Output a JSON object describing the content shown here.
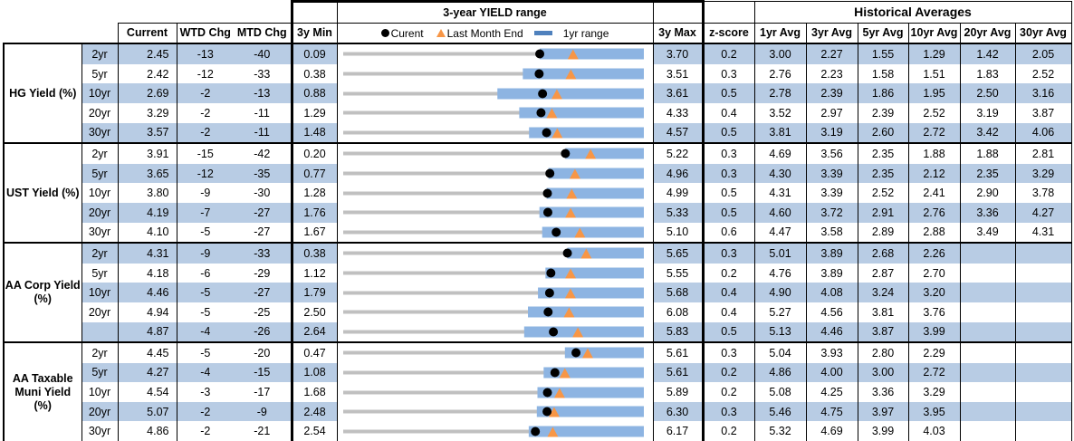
{
  "headers": {
    "range_title": "3-year YIELD range",
    "hist_title": "Historical Averages",
    "current": "Current",
    "wtd": "WTD Chg",
    "mtd": "MTD Chg",
    "min3y": "3y Min",
    "max3y": "3y Max",
    "zscore": "z-score",
    "avg": [
      "1yr Avg",
      "3yr Avg",
      "5yr Avg",
      "10yr Avg",
      "20yr Avg",
      "30yr Avg"
    ],
    "legend": {
      "current": "Curent",
      "last_month_end": "Last Month End",
      "range_1yr": "1yr range"
    }
  },
  "colors": {
    "row_shade": "#b8cce4",
    "current_marker": "#000000",
    "last_month_marker": "#f79646",
    "range_1yr": "#8db4e2",
    "range_3y": "#c0c0c0",
    "legend_bar": "#4f81bd"
  },
  "groups": [
    {
      "label": "HG Yield (%)",
      "rows": [
        {
          "tenor": "2yr",
          "current": "2.45",
          "wtd": "-13",
          "mtd": "-40",
          "min": "0.09",
          "max": "3.70",
          "z": "0.2",
          "avg": [
            "3.00",
            "2.27",
            "1.55",
            "1.29",
            "1.42",
            "2.05"
          ],
          "last_month_end": 2.85,
          "range_1yr": [
            2.45,
            3.7
          ]
        },
        {
          "tenor": "5yr",
          "current": "2.42",
          "wtd": "-12",
          "mtd": "-33",
          "min": "0.38",
          "max": "3.51",
          "z": "0.3",
          "avg": [
            "2.76",
            "2.23",
            "1.58",
            "1.51",
            "1.83",
            "2.52"
          ],
          "last_month_end": 2.75,
          "range_1yr": [
            2.25,
            3.51
          ]
        },
        {
          "tenor": "10yr",
          "current": "2.69",
          "wtd": "-2",
          "mtd": "-13",
          "min": "0.88",
          "max": "3.61",
          "z": "0.5",
          "avg": [
            "2.78",
            "2.39",
            "1.86",
            "1.95",
            "2.50",
            "3.16"
          ],
          "last_month_end": 2.82,
          "range_1yr": [
            2.28,
            3.61
          ]
        },
        {
          "tenor": "20yr",
          "current": "3.29",
          "wtd": "-2",
          "mtd": "-11",
          "min": "1.29",
          "max": "4.33",
          "z": "0.4",
          "avg": [
            "3.52",
            "2.97",
            "2.39",
            "2.52",
            "3.19",
            "3.87"
          ],
          "last_month_end": 3.4,
          "range_1yr": [
            3.07,
            4.33
          ]
        },
        {
          "tenor": "30yr",
          "current": "3.57",
          "wtd": "-2",
          "mtd": "-11",
          "min": "1.48",
          "max": "4.57",
          "z": "0.5",
          "avg": [
            "3.81",
            "3.19",
            "2.60",
            "2.72",
            "3.42",
            "4.06"
          ],
          "last_month_end": 3.68,
          "range_1yr": [
            3.39,
            4.57
          ]
        }
      ]
    },
    {
      "label": "UST Yield (%)",
      "rows": [
        {
          "tenor": "2yr",
          "current": "3.91",
          "wtd": "-15",
          "mtd": "-42",
          "min": "0.20",
          "max": "5.22",
          "z": "0.3",
          "avg": [
            "4.69",
            "3.56",
            "2.35",
            "1.88",
            "1.88",
            "2.81"
          ],
          "last_month_end": 4.33,
          "range_1yr": [
            3.91,
            5.22
          ]
        },
        {
          "tenor": "5yr",
          "current": "3.65",
          "wtd": "-12",
          "mtd": "-35",
          "min": "0.77",
          "max": "4.96",
          "z": "0.3",
          "avg": [
            "4.30",
            "3.39",
            "2.35",
            "2.12",
            "2.35",
            "3.29"
          ],
          "last_month_end": 4.0,
          "range_1yr": [
            3.63,
            4.96
          ]
        },
        {
          "tenor": "10yr",
          "current": "3.80",
          "wtd": "-9",
          "mtd": "-30",
          "min": "1.28",
          "max": "4.99",
          "z": "0.5",
          "avg": [
            "4.31",
            "3.39",
            "2.52",
            "2.41",
            "2.90",
            "3.78"
          ],
          "last_month_end": 4.1,
          "range_1yr": [
            3.79,
            4.99
          ]
        },
        {
          "tenor": "20yr",
          "current": "4.19",
          "wtd": "-7",
          "mtd": "-27",
          "min": "1.76",
          "max": "5.33",
          "z": "0.5",
          "avg": [
            "4.60",
            "3.72",
            "2.91",
            "2.76",
            "3.36",
            "4.27"
          ],
          "last_month_end": 4.46,
          "range_1yr": [
            4.09,
            5.33
          ]
        },
        {
          "tenor": "30yr",
          "current": "4.10",
          "wtd": "-5",
          "mtd": "-27",
          "min": "1.67",
          "max": "5.10",
          "z": "0.6",
          "avg": [
            "4.47",
            "3.58",
            "2.89",
            "2.88",
            "3.49",
            "4.31"
          ],
          "last_month_end": 4.37,
          "range_1yr": [
            3.94,
            5.1
          ]
        }
      ]
    },
    {
      "label": "AA Corp Yield (%)",
      "rows": [
        {
          "tenor": "2yr",
          "current": "4.31",
          "wtd": "-9",
          "mtd": "-33",
          "min": "0.38",
          "max": "5.65",
          "z": "0.3",
          "avg": [
            "5.01",
            "3.89",
            "2.68",
            "2.26",
            "",
            ""
          ],
          "last_month_end": 4.64,
          "range_1yr": [
            4.31,
            5.65
          ]
        },
        {
          "tenor": "5yr",
          "current": "4.18",
          "wtd": "-6",
          "mtd": "-29",
          "min": "1.12",
          "max": "5.55",
          "z": "0.2",
          "avg": [
            "4.76",
            "3.89",
            "2.87",
            "2.70",
            "",
            ""
          ],
          "last_month_end": 4.47,
          "range_1yr": [
            4.1,
            5.55
          ]
        },
        {
          "tenor": "10yr",
          "current": "4.46",
          "wtd": "-5",
          "mtd": "-27",
          "min": "1.79",
          "max": "5.68",
          "z": "0.4",
          "avg": [
            "4.90",
            "4.08",
            "3.24",
            "3.20",
            "",
            ""
          ],
          "last_month_end": 4.73,
          "range_1yr": [
            4.31,
            5.68
          ]
        },
        {
          "tenor": "20yr",
          "current": "4.94",
          "wtd": "-5",
          "mtd": "-25",
          "min": "2.50",
          "max": "6.08",
          "z": "0.4",
          "avg": [
            "5.27",
            "4.56",
            "3.81",
            "3.76",
            "",
            ""
          ],
          "last_month_end": 5.19,
          "range_1yr": [
            4.7,
            6.08
          ]
        },
        {
          "tenor": "",
          "current": "4.87",
          "wtd": "-4",
          "mtd": "-26",
          "min": "2.64",
          "max": "5.83",
          "z": "0.5",
          "avg": [
            "5.13",
            "4.46",
            "3.87",
            "3.99",
            "",
            ""
          ],
          "last_month_end": 5.13,
          "range_1yr": [
            4.56,
            5.83
          ]
        }
      ]
    },
    {
      "label": "AA Taxable Muni Yield (%)",
      "rows": [
        {
          "tenor": "2yr",
          "current": "4.45",
          "wtd": "-5",
          "mtd": "-20",
          "min": "0.47",
          "max": "5.61",
          "z": "0.3",
          "avg": [
            "5.04",
            "3.93",
            "2.80",
            "2.29",
            "",
            ""
          ],
          "last_month_end": 4.65,
          "range_1yr": [
            4.26,
            5.61
          ]
        },
        {
          "tenor": "5yr",
          "current": "4.27",
          "wtd": "-4",
          "mtd": "-15",
          "min": "1.08",
          "max": "5.61",
          "z": "0.2",
          "avg": [
            "4.86",
            "4.00",
            "3.00",
            "2.72",
            "",
            ""
          ],
          "last_month_end": 4.42,
          "range_1yr": [
            4.1,
            5.61
          ]
        },
        {
          "tenor": "10yr",
          "current": "4.54",
          "wtd": "-3",
          "mtd": "-17",
          "min": "1.68",
          "max": "5.89",
          "z": "0.2",
          "avg": [
            "5.08",
            "4.25",
            "3.36",
            "3.29",
            "",
            ""
          ],
          "last_month_end": 4.71,
          "range_1yr": [
            4.4,
            5.89
          ]
        },
        {
          "tenor": "20yr",
          "current": "5.07",
          "wtd": "-2",
          "mtd": "-9",
          "min": "2.48",
          "max": "6.30",
          "z": "0.3",
          "avg": [
            "5.46",
            "4.75",
            "3.97",
            "3.95",
            "",
            ""
          ],
          "last_month_end": 5.16,
          "range_1yr": [
            4.94,
            6.3
          ]
        },
        {
          "tenor": "30yr",
          "current": "4.86",
          "wtd": "-2",
          "mtd": "-21",
          "min": "2.54",
          "max": "6.17",
          "z": "0.2",
          "avg": [
            "5.32",
            "4.69",
            "3.99",
            "4.03",
            "",
            ""
          ],
          "last_month_end": 5.07,
          "range_1yr": [
            4.78,
            6.17
          ]
        }
      ]
    }
  ]
}
